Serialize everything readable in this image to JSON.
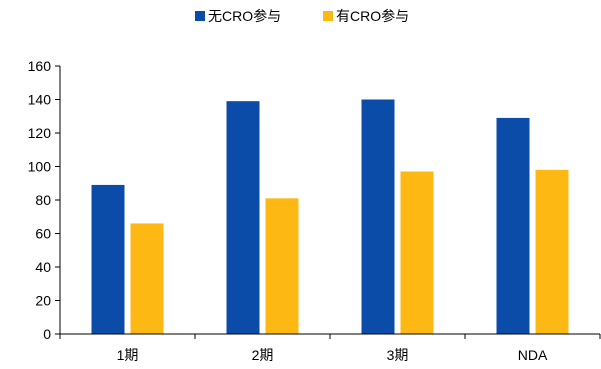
{
  "chart_data": {
    "type": "bar",
    "categories": [
      "1期",
      "2期",
      "3期",
      "NDA"
    ],
    "series": [
      {
        "name": "无CRO参与",
        "color": "#0B4CA8",
        "values": [
          89,
          139,
          140,
          129
        ]
      },
      {
        "name": "有CRO参与",
        "color": "#FDB813",
        "values": [
          66,
          81,
          97,
          98
        ]
      }
    ],
    "ylim": [
      0,
      160
    ],
    "yticks": [
      0,
      20,
      40,
      60,
      80,
      100,
      120,
      140,
      160
    ],
    "grid": false,
    "legend": "top-center"
  }
}
